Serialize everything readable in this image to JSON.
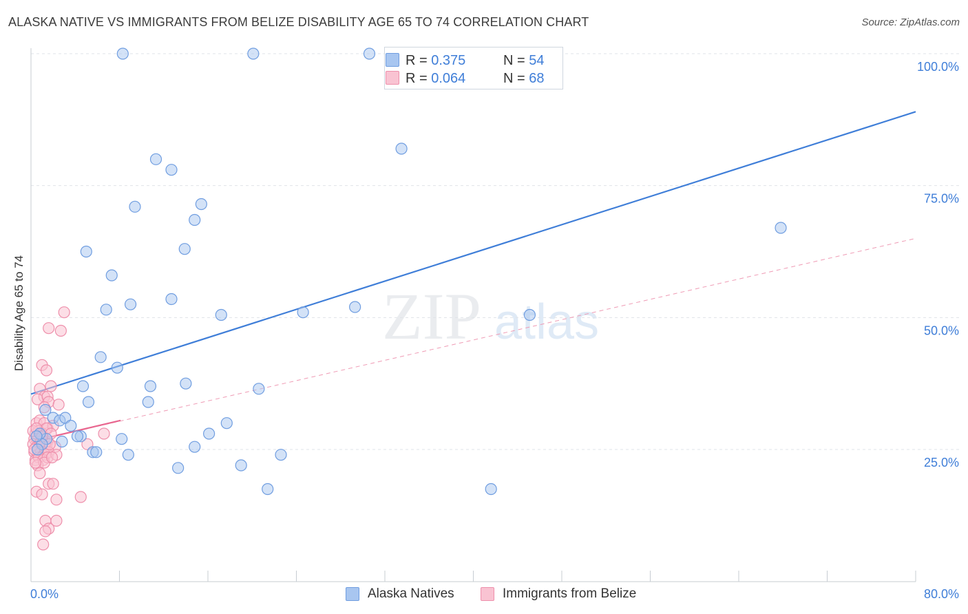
{
  "title": "ALASKA NATIVE VS IMMIGRANTS FROM BELIZE DISABILITY AGE 65 TO 74 CORRELATION CHART",
  "source": "Source: ZipAtlas.com",
  "watermark": {
    "zip": "ZIP",
    "atlas": "atlas"
  },
  "legend_top": {
    "rows": [
      {
        "r_label": "R = ",
        "r_value": "0.375",
        "n_label": "N = ",
        "n_value": "54",
        "color": "#a8c6f0",
        "border": "#6f9de0"
      },
      {
        "r_label": "R = ",
        "r_value": "0.064",
        "n_label": "N = ",
        "n_value": "68",
        "color": "#f9c3d2",
        "border": "#ee8fab"
      }
    ]
  },
  "legend_bottom": [
    {
      "label": "Alaska Natives",
      "color": "#a8c6f0",
      "border": "#6f9de0"
    },
    {
      "label": "Immigrants from Belize",
      "color": "#f9c3d2",
      "border": "#ee8fab"
    }
  ],
  "chart_data": {
    "type": "scatter",
    "ylabel": "Disability Age 65 to 74",
    "xlim": [
      0,
      80
    ],
    "ylim": [
      0,
      105
    ],
    "x_tick_labels": [
      "0.0%",
      "80.0%"
    ],
    "y_ticks": [
      25,
      50,
      75,
      100
    ],
    "y_tick_labels": [
      "25.0%",
      "50.0%",
      "75.0%",
      "100.0%"
    ],
    "grid": "horizontal dashed",
    "colors": {
      "blue": "#3f7ed8",
      "blue_fill": "#a8c6f0",
      "pink": "#e8668f",
      "pink_fill": "#f9c3d2",
      "axis_text": "#3f7ed8"
    },
    "series": [
      {
        "name": "Alaska Natives",
        "trend": {
          "x": [
            0,
            80
          ],
          "y": [
            35.5,
            89
          ],
          "style": "solid"
        },
        "points": [
          [
            8.3,
            100
          ],
          [
            20.1,
            100
          ],
          [
            30.6,
            100
          ],
          [
            44.8,
            100
          ],
          [
            33.5,
            82
          ],
          [
            11.3,
            80
          ],
          [
            12.7,
            78
          ],
          [
            9.4,
            71
          ],
          [
            15.4,
            71.5
          ],
          [
            14.8,
            68.5
          ],
          [
            67.8,
            67
          ],
          [
            5.0,
            62.5
          ],
          [
            13.9,
            63
          ],
          [
            7.3,
            58
          ],
          [
            12.7,
            53.5
          ],
          [
            6.8,
            51.5
          ],
          [
            9.0,
            52.5
          ],
          [
            17.2,
            50.5
          ],
          [
            24.6,
            51
          ],
          [
            29.3,
            52
          ],
          [
            45.1,
            50.5
          ],
          [
            6.3,
            42.5
          ],
          [
            7.8,
            40.5
          ],
          [
            4.7,
            37
          ],
          [
            10.8,
            37
          ],
          [
            14.0,
            37.5
          ],
          [
            20.6,
            36.5
          ],
          [
            5.2,
            34
          ],
          [
            10.6,
            34
          ],
          [
            1.3,
            32.5
          ],
          [
            2.0,
            31
          ],
          [
            2.6,
            30.5
          ],
          [
            3.1,
            31
          ],
          [
            3.6,
            29.5
          ],
          [
            17.7,
            30
          ],
          [
            4.5,
            27.5
          ],
          [
            4.2,
            27.5
          ],
          [
            8.2,
            27
          ],
          [
            2.8,
            26.5
          ],
          [
            16.1,
            28
          ],
          [
            14.8,
            25.5
          ],
          [
            5.6,
            24.5
          ],
          [
            5.9,
            24.5
          ],
          [
            8.8,
            24
          ],
          [
            22.6,
            24
          ],
          [
            13.3,
            21.5
          ],
          [
            19.0,
            22
          ],
          [
            21.4,
            17.5
          ],
          [
            41.6,
            17.5
          ],
          [
            1.4,
            27
          ],
          [
            0.8,
            28
          ],
          [
            1.0,
            26
          ],
          [
            0.6,
            25
          ],
          [
            0.5,
            27.5
          ]
        ]
      },
      {
        "name": "Immigrants from Belize",
        "trend": {
          "x": [
            0,
            8.1
          ],
          "y": [
            26.5,
            30.5
          ],
          "style": "solid"
        },
        "trend_ext": {
          "x": [
            0,
            80
          ],
          "y": [
            26.5,
            65
          ],
          "style": "dashed"
        },
        "points": [
          [
            3.0,
            51
          ],
          [
            1.6,
            48
          ],
          [
            2.7,
            47.5
          ],
          [
            1.0,
            41
          ],
          [
            1.4,
            40
          ],
          [
            0.8,
            36.5
          ],
          [
            1.8,
            37
          ],
          [
            1.2,
            35
          ],
          [
            0.6,
            34.5
          ],
          [
            1.5,
            35
          ],
          [
            1.6,
            34
          ],
          [
            1.2,
            33
          ],
          [
            2.5,
            33.5
          ],
          [
            0.5,
            30
          ],
          [
            0.8,
            30.5
          ],
          [
            1.2,
            30
          ],
          [
            1.5,
            29
          ],
          [
            2.0,
            29.5
          ],
          [
            0.4,
            28
          ],
          [
            0.7,
            28.5
          ],
          [
            1.0,
            28
          ],
          [
            1.4,
            29
          ],
          [
            0.3,
            27
          ],
          [
            0.6,
            27
          ],
          [
            0.9,
            26.5
          ],
          [
            1.2,
            27
          ],
          [
            1.5,
            26.5
          ],
          [
            0.2,
            26
          ],
          [
            0.5,
            25.5
          ],
          [
            0.8,
            26
          ],
          [
            1.1,
            25
          ],
          [
            1.4,
            25.5
          ],
          [
            2.2,
            25.5
          ],
          [
            0.3,
            24.5
          ],
          [
            0.6,
            24
          ],
          [
            0.9,
            24.5
          ],
          [
            1.3,
            24
          ],
          [
            1.6,
            24.5
          ],
          [
            0.4,
            23
          ],
          [
            0.7,
            23.5
          ],
          [
            1.1,
            23
          ],
          [
            1.5,
            23.5
          ],
          [
            0.6,
            22
          ],
          [
            1.2,
            22.5
          ],
          [
            5.1,
            26
          ],
          [
            6.6,
            28
          ],
          [
            0.2,
            28.5
          ],
          [
            0.5,
            29
          ],
          [
            1.8,
            28
          ],
          [
            0.3,
            25
          ],
          [
            2.3,
            24
          ],
          [
            1.9,
            23.5
          ],
          [
            0.8,
            20.5
          ],
          [
            1.6,
            18.5
          ],
          [
            2.0,
            18.5
          ],
          [
            0.5,
            17
          ],
          [
            1.0,
            16.5
          ],
          [
            2.3,
            15.5
          ],
          [
            4.5,
            16
          ],
          [
            1.3,
            11.5
          ],
          [
            2.3,
            11.5
          ],
          [
            1.6,
            10
          ],
          [
            1.3,
            9.5
          ],
          [
            1.1,
            7
          ],
          [
            0.9,
            26.5
          ],
          [
            1.7,
            26
          ],
          [
            0.4,
            22.5
          ],
          [
            1.0,
            27.5
          ]
        ]
      }
    ]
  }
}
